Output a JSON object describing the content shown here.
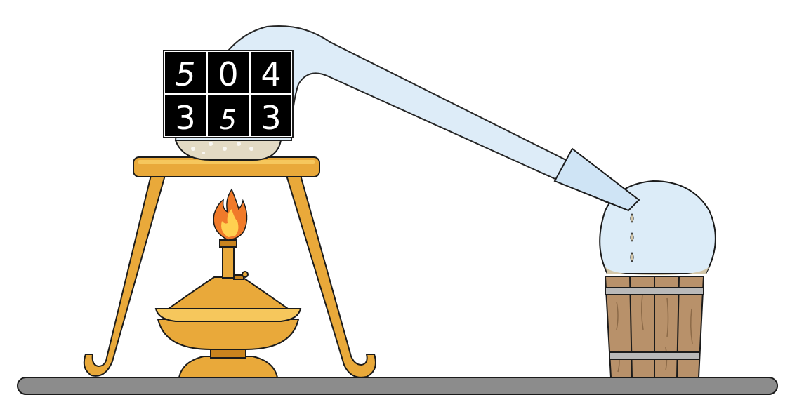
{
  "scene": {
    "description_name": "distillation-apparatus",
    "digits": [
      "5",
      "0",
      "4",
      "3",
      "5",
      "3"
    ],
    "colors": {
      "brass": "#e9a93a",
      "brass_light": "#f6c75c",
      "brass_dark": "#c8831e",
      "glass": "#dcecf8",
      "glass_stroke": "#1b1b1b",
      "wood": "#b8916a",
      "wood_dark": "#8c6a48",
      "hoop": "#b9b9b9",
      "table": "#8c8c8c",
      "flame_outer": "#f07a2a",
      "flame_inner": "#ffd050",
      "liquid": "#d3c6a8",
      "digit_bg": "#000000",
      "digit_fg": "#ffffff"
    },
    "icons": [
      "tripod-icon",
      "burner-icon",
      "flame-icon",
      "retort-icon",
      "flask-icon",
      "bucket-icon",
      "droplet-icon"
    ]
  }
}
